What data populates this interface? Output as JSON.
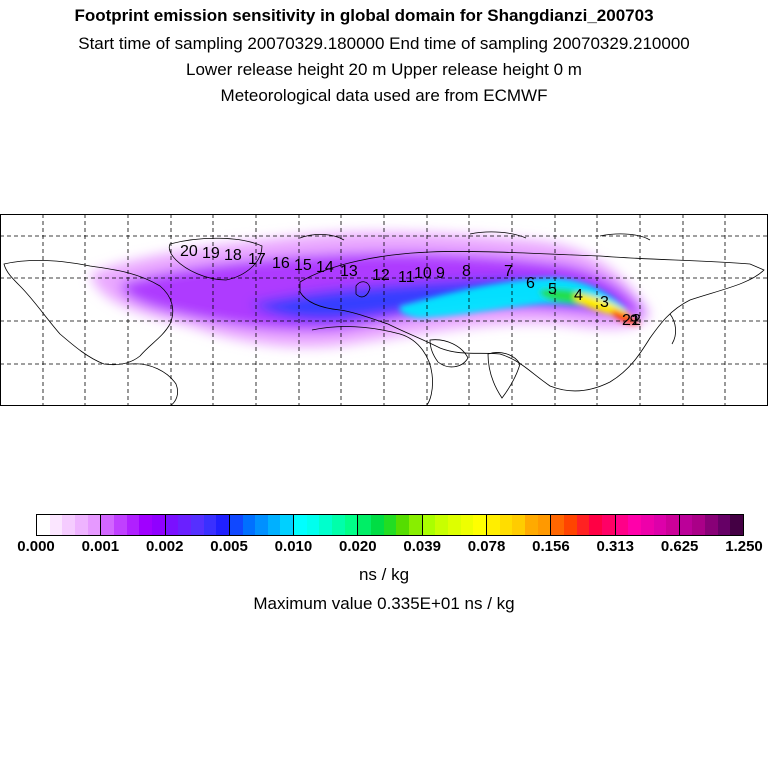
{
  "header": {
    "title": "Footprint emission sensitivity in global domain for Shangdianzi_200703",
    "sampling_times": "Start time of sampling 20070329.180000     End time of sampling 20070329.210000",
    "release_heights": "Lower release height   20 m          Upper release height    0 m",
    "met_data": "Meteorological data used are from ECMWF"
  },
  "map": {
    "trajectory_labels": [
      "21",
      "2",
      "3",
      "4",
      "5",
      "6",
      "7",
      "8",
      "9",
      "10",
      "11",
      "12",
      "13",
      "14",
      "15",
      "16",
      "17",
      "18",
      "19",
      "20"
    ],
    "colors": {
      "land_outline": "#000000",
      "grid": "#000000"
    }
  },
  "colorbar": {
    "tick_labels": [
      "0.000",
      "0.001",
      "0.002",
      "0.005",
      "0.010",
      "0.020",
      "0.039",
      "0.078",
      "0.156",
      "0.313",
      "0.625",
      "1.250"
    ],
    "colors": [
      "#ffffff",
      "#fbe6ff",
      "#f5ccff",
      "#eeb3ff",
      "#e699ff",
      "#d266ff",
      "#c040ff",
      "#b020ff",
      "#a000ff",
      "#9000ff",
      "#7a10ff",
      "#6a20ff",
      "#5530ff",
      "#3a30ff",
      "#2020ff",
      "#1048ff",
      "#0070ff",
      "#0090ff",
      "#00b0ff",
      "#00d0ff",
      "#00ffff",
      "#00ffee",
      "#00ffcc",
      "#00ffaa",
      "#00ff88",
      "#00ee66",
      "#00dd44",
      "#22dd22",
      "#55dd00",
      "#88ee00",
      "#aaff00",
      "#c8ff00",
      "#ddff00",
      "#eeff00",
      "#ffff00",
      "#ffee00",
      "#ffdd00",
      "#ffcc00",
      "#ffaa00",
      "#ff9900",
      "#ff6600",
      "#ff4400",
      "#ff2222",
      "#ff0044",
      "#ff0066",
      "#ff0088",
      "#ff00aa",
      "#ee00aa",
      "#dd00aa",
      "#cc0099",
      "#bb0099",
      "#aa0088",
      "#880077",
      "#660066",
      "#440044"
    ],
    "unit": "ns / kg",
    "max_value": "Maximum value  0.335E+01 ns / kg"
  }
}
